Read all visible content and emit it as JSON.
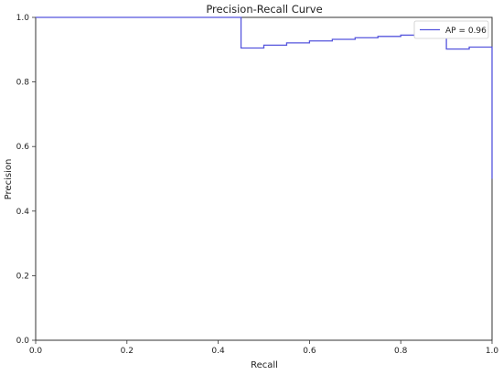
{
  "chart_data": {
    "type": "line",
    "title": "Precision-Recall Curve",
    "xlabel": "Recall",
    "ylabel": "Precision",
    "xlim": [
      0,
      1
    ],
    "ylim": [
      0,
      1
    ],
    "xticks": [
      "0.0",
      "0.2",
      "0.4",
      "0.6",
      "0.8",
      "1.0"
    ],
    "yticks": [
      "0.0",
      "0.2",
      "0.4",
      "0.6",
      "0.8",
      "1.0"
    ],
    "grid": false,
    "legend_position": "top-right",
    "series": [
      {
        "name": "AP = 0.96",
        "color": "#5555dd",
        "step": "post",
        "x": [
          0.0,
          0.45,
          0.45,
          0.5,
          0.55,
          0.6,
          0.65,
          0.7,
          0.75,
          0.8,
          0.85,
          0.9,
          0.9,
          0.95,
          1.0,
          1.0
        ],
        "y": [
          1.0,
          1.0,
          0.905,
          0.914,
          0.921,
          0.927,
          0.932,
          0.937,
          0.941,
          0.945,
          0.948,
          0.948,
          0.902,
          0.908,
          0.908,
          0.5
        ]
      }
    ]
  }
}
